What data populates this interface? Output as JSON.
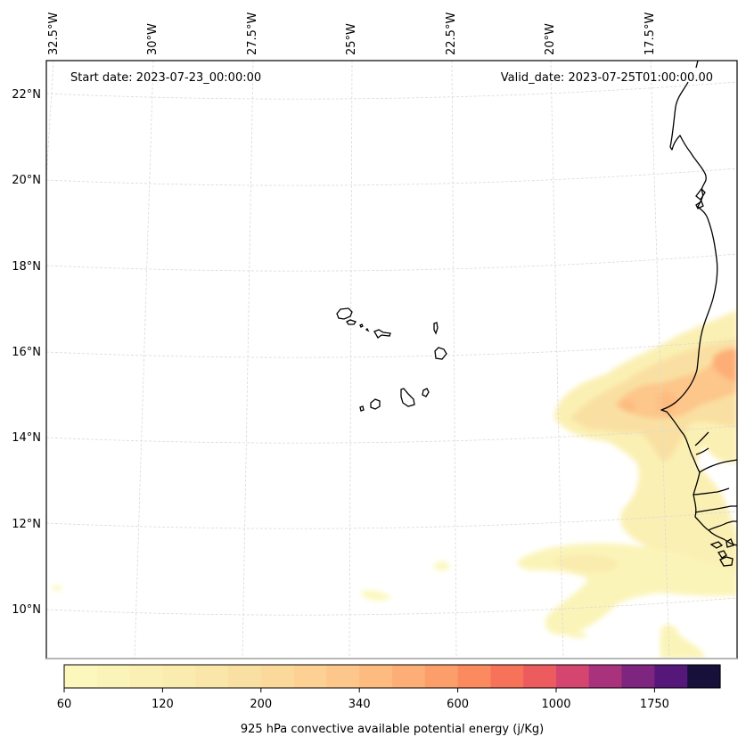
{
  "map": {
    "annotations": {
      "start_date": "Start date: 2023-07-23_00:00:00",
      "valid_date": "Valid_date: 2023-07-25T01:00:00.00"
    },
    "longitude_labels": [
      "32.5°W",
      "30°W",
      "27.5°W",
      "25°W",
      "22.5°W",
      "20°W",
      "17.5°W"
    ],
    "latitude_labels": [
      "22°N",
      "20°N",
      "18°N",
      "16°N",
      "14°N",
      "12°N",
      "10°N"
    ],
    "extent": {
      "lon_min": -33.1,
      "lon_max": -16.0,
      "lat_min": 8.9,
      "lat_max": 22.8
    },
    "features": [
      "coastline",
      "cape-verde-islands",
      "west-africa-coast",
      "gridlines"
    ],
    "field_regions": [
      {
        "name": "senegal-mauritania-cape-plume",
        "max_level_index": 8
      },
      {
        "name": "mauritania-interior-core",
        "max_level_index": 9
      },
      {
        "name": "guinea-bissau-band",
        "max_level_index": 4
      },
      {
        "name": "southwest-ocean-band",
        "max_level_index": 4
      },
      {
        "name": "central-ocean-patch",
        "max_level_index": 0
      },
      {
        "name": "west-edge-patch",
        "max_level_index": 0
      }
    ]
  },
  "colorbar": {
    "label": "925 hPa convective available potential energy (j/Kg)",
    "tick_labels": [
      "60",
      "120",
      "200",
      "340",
      "600",
      "1000",
      "1750"
    ],
    "colors": [
      "#fcf8bd",
      "#fbf4b8",
      "#fbf0b3",
      "#faebae",
      "#f9e6a8",
      "#f9e0a2",
      "#fbd99b",
      "#fcd193",
      "#fdc68a",
      "#fdbb80",
      "#fdae76",
      "#fc9e6a",
      "#fb8b5f",
      "#f6735a",
      "#ec5b5e",
      "#d44570",
      "#a8327b",
      "#7d257f",
      "#56177b",
      "#16103a"
    ],
    "colormap": "magma_r"
  }
}
